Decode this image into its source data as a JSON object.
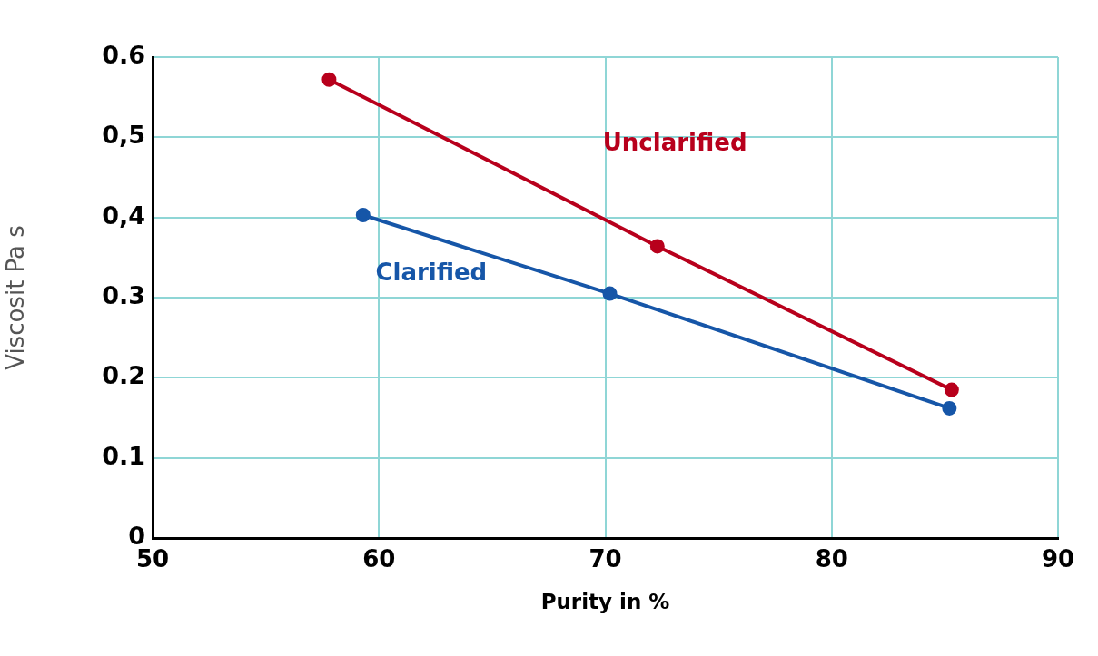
{
  "chart_data": {
    "type": "line",
    "xlabel": "Purity in %",
    "ylabel": "Viscosit Pa s",
    "series": [
      {
        "name": "Unclarified",
        "color": "#b8001c",
        "x": [
          57.8,
          72.3,
          85.3
        ],
        "values": [
          0.572,
          0.364,
          0.185
        ]
      },
      {
        "name": "Clarified",
        "color": "#1656a8",
        "x": [
          59.3,
          70.2,
          85.2
        ],
        "values": [
          0.403,
          0.305,
          0.162
        ]
      }
    ],
    "xlim": [
      50,
      90
    ],
    "xticks": [
      50,
      60,
      70,
      80,
      90
    ],
    "ylim": [
      0,
      0.6
    ],
    "yticks": [
      "0",
      {
        "value": 0.1,
        "label": "0.1"
      },
      {
        "value": 0.2,
        "label": "0.2"
      },
      {
        "value": 0.3,
        "label": "0.3"
      },
      {
        "value": 0.4,
        "label": "0,4"
      },
      {
        "value": 0.5,
        "label": "0,5"
      },
      {
        "value": 0.6,
        "label": "0.6"
      }
    ],
    "grid": true,
    "legend": false,
    "marker": "circle",
    "line_style": "solid"
  }
}
